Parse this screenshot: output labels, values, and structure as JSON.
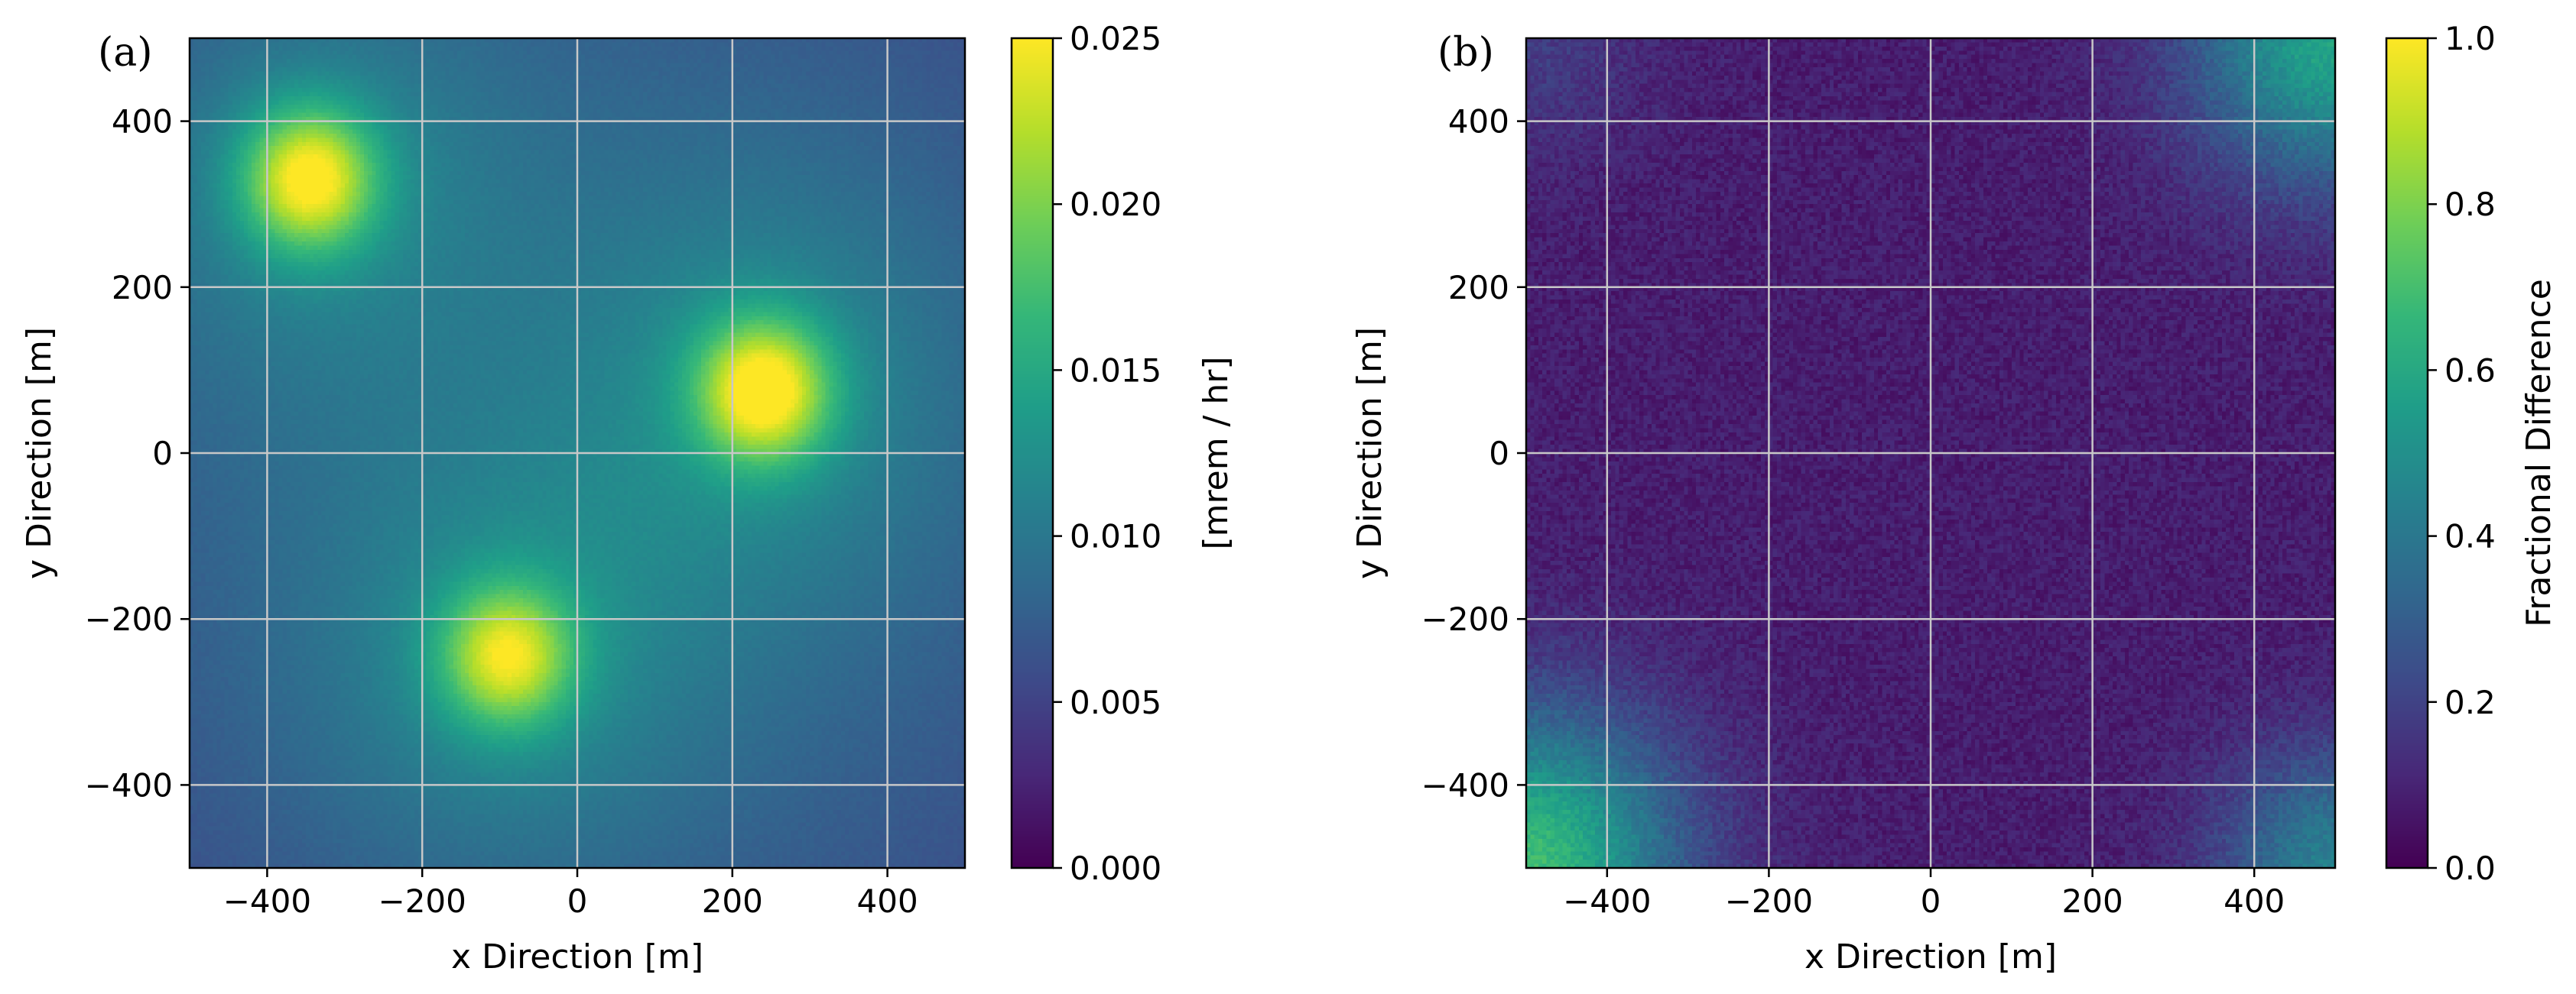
{
  "chart_data": [
    {
      "type": "heatmap",
      "panel_label": "(a)",
      "xlabel": "x Direction [m]",
      "ylabel": "y Direction [m]",
      "xlim": [
        -500,
        500
      ],
      "ylim": [
        -500,
        500
      ],
      "xticks": [
        -400,
        -200,
        0,
        200,
        400
      ],
      "yticks": [
        -400,
        -200,
        0,
        200,
        400
      ],
      "xtick_labels": [
        "−400",
        "−200",
        "0",
        "200",
        "400"
      ],
      "ytick_labels": [
        "−400",
        "−200",
        "0",
        "200",
        "400"
      ],
      "grid": true,
      "colormap": "viridis",
      "colorbar": {
        "label": "[mrem / hr]",
        "range": [
          0.0,
          0.025
        ],
        "ticks": [
          0.0,
          0.005,
          0.01,
          0.015,
          0.02,
          0.025
        ],
        "tick_labels": [
          "0.000",
          "0.005",
          "0.010",
          "0.015",
          "0.020",
          "0.025"
        ]
      },
      "background_level": 0.0085,
      "hotspots": [
        {
          "x": -345,
          "y": 330,
          "peak": 0.0235
        },
        {
          "x": 240,
          "y": 75,
          "peak": 0.024
        },
        {
          "x": -90,
          "y": -245,
          "peak": 0.0215
        }
      ]
    },
    {
      "type": "heatmap",
      "panel_label": "(b)",
      "xlabel": "x Direction [m]",
      "ylabel": "y Direction [m]",
      "xlim": [
        -500,
        500
      ],
      "ylim": [
        -500,
        500
      ],
      "xticks": [
        -400,
        -200,
        0,
        200,
        400
      ],
      "yticks": [
        -400,
        -200,
        0,
        200,
        400
      ],
      "xtick_labels": [
        "−400",
        "−200",
        "0",
        "200",
        "400"
      ],
      "ytick_labels": [
        "−400",
        "−200",
        "0",
        "200",
        "400"
      ],
      "grid": true,
      "colormap": "viridis",
      "colorbar": {
        "label": "Fractional Difference",
        "range": [
          0.0,
          1.0
        ],
        "ticks": [
          0.0,
          0.2,
          0.4,
          0.6,
          0.8,
          1.0
        ],
        "tick_labels": [
          "0.0",
          "0.2",
          "0.4",
          "0.6",
          "0.8",
          "1.0"
        ]
      },
      "typical_value": 0.08,
      "corner_values": {
        "bottom_left": 0.6,
        "top_right": 0.5,
        "bottom_right": 0.35,
        "top_left": 0.1
      }
    }
  ]
}
